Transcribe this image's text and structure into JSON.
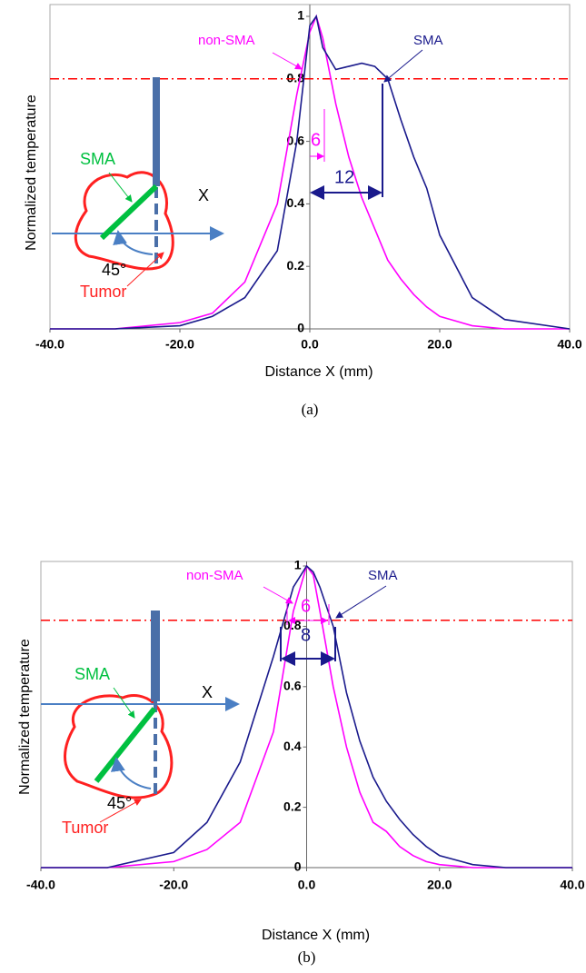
{
  "chart_data": [
    {
      "type": "line",
      "caption": "(a)",
      "xlabel": "Distance X (mm)",
      "ylabel": "Normalized temperature",
      "x": [
        -40,
        -30,
        -20,
        -15,
        -10,
        -5,
        -2,
        0,
        1,
        2,
        4,
        6,
        8,
        10,
        12,
        14,
        16,
        18,
        20,
        25,
        30,
        40
      ],
      "series": [
        {
          "name": "non-SMA",
          "color": "#ff00ff",
          "values": [
            0,
            0,
            0.02,
            0.05,
            0.15,
            0.4,
            0.75,
            0.95,
            1,
            0.93,
            0.72,
            0.55,
            0.42,
            0.32,
            0.22,
            0.16,
            0.11,
            0.07,
            0.04,
            0.01,
            0,
            0
          ]
        },
        {
          "name": "SMA",
          "color": "#1a1a8c",
          "values": [
            0,
            0,
            0.01,
            0.04,
            0.1,
            0.25,
            0.6,
            0.97,
            1,
            0.9,
            0.83,
            0.84,
            0.85,
            0.84,
            0.8,
            0.67,
            0.55,
            0.45,
            0.3,
            0.1,
            0.03,
            0
          ]
        }
      ],
      "ref_line": 0.8,
      "ref_color": "#ff0000",
      "xlim": [
        -40,
        40
      ],
      "ylim": [
        0,
        1
      ],
      "xticks": [
        {
          "value": -40,
          "label": "-40.0"
        },
        {
          "value": -20,
          "label": "-20.0"
        },
        {
          "value": 0,
          "label": "0.0"
        },
        {
          "value": 20,
          "label": "20.0"
        },
        {
          "value": 40,
          "label": "40.0"
        }
      ],
      "yticks": [
        0,
        0.2,
        0.4,
        0.6,
        0.8,
        1
      ],
      "annotations": [
        "6",
        "12",
        "SMA",
        "X",
        "45°",
        "Tumor"
      ]
    },
    {
      "type": "line",
      "caption": "(b)",
      "xlabel": "Distance X (mm)",
      "ylabel": "Normalized temperature",
      "x": [
        -40,
        -30,
        -20,
        -15,
        -10,
        -5,
        -2,
        0,
        1,
        2,
        4,
        6,
        8,
        10,
        12,
        14,
        16,
        18,
        20,
        25,
        30,
        40
      ],
      "series": [
        {
          "name": "non-SMA",
          "color": "#ff00ff",
          "values": [
            0,
            0,
            0.02,
            0.06,
            0.15,
            0.45,
            0.85,
            1,
            0.97,
            0.85,
            0.6,
            0.4,
            0.25,
            0.15,
            0.12,
            0.07,
            0.04,
            0.02,
            0.01,
            0,
            0,
            0
          ]
        },
        {
          "name": "SMA",
          "color": "#1a1a8c",
          "values": [
            0,
            0,
            0.05,
            0.15,
            0.35,
            0.7,
            0.93,
            1,
            0.98,
            0.93,
            0.8,
            0.58,
            0.42,
            0.3,
            0.22,
            0.16,
            0.11,
            0.07,
            0.04,
            0.01,
            0,
            0
          ]
        }
      ],
      "ref_line": 0.82,
      "ref_color": "#ff0000",
      "xlim": [
        -40,
        40
      ],
      "ylim": [
        0,
        1
      ],
      "xticks": [
        {
          "value": -40,
          "label": "-40.0"
        },
        {
          "value": -20,
          "label": "-20.0"
        },
        {
          "value": 0,
          "label": "0.0"
        },
        {
          "value": 20,
          "label": "20.0"
        },
        {
          "value": 40,
          "label": "40.0"
        }
      ],
      "yticks": [
        0,
        0.2,
        0.4,
        0.6,
        0.8,
        1
      ],
      "annotations": [
        "6",
        "8",
        "SMA",
        "X",
        "45°",
        "Tumor"
      ]
    }
  ]
}
